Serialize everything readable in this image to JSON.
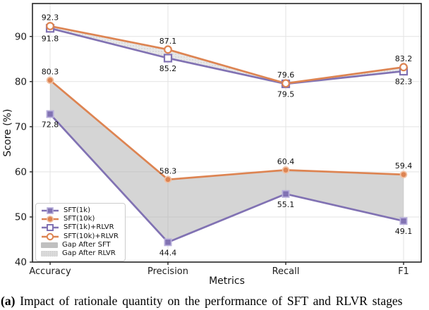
{
  "caption": {
    "marker": "(a)",
    "text": "Impact of rationale quantity on the performance of SFT and RLVR stages"
  },
  "chart_data": {
    "type": "line",
    "title": "",
    "xlabel": "Metrics",
    "ylabel": "Score (%)",
    "categories": [
      "Accuracy",
      "Precision",
      "Recall",
      "F1"
    ],
    "ylim": [
      40,
      97.3
    ],
    "yticks": [
      40,
      50,
      60,
      70,
      80,
      90
    ],
    "grid": true,
    "legend_position": "lower left",
    "series": [
      {
        "name": "SFT(1k)",
        "values": [
          72.8,
          44.4,
          55.1,
          49.1
        ],
        "color": "#8172b3",
        "edge_color": "#b7aeda",
        "marker": "square",
        "marker_fill": "solid",
        "label_side": "below"
      },
      {
        "name": "SFT(10k)",
        "values": [
          80.3,
          58.3,
          60.4,
          59.4
        ],
        "color": "#dd8452",
        "edge_color": "#f0c1a4",
        "marker": "circle",
        "marker_fill": "solid",
        "label_side": "above"
      },
      {
        "name": "SFT(1k)+RLVR",
        "values": [
          91.8,
          85.2,
          79.5,
          82.3
        ],
        "color": "#8172b3",
        "edge_color": "#8172b3",
        "marker": "square",
        "marker_fill": "open",
        "label_side": "below"
      },
      {
        "name": "SFT(10k)+RLVR",
        "values": [
          92.3,
          87.1,
          79.6,
          83.2
        ],
        "color": "#dd8452",
        "edge_color": "#dd8452",
        "marker": "circle",
        "marker_fill": "open",
        "label_side": "above"
      }
    ],
    "areas": [
      {
        "name": "Gap After SFT",
        "between": [
          0,
          1
        ],
        "fill": "#ababab",
        "opacity": 0.5,
        "dots": false
      },
      {
        "name": "Gap After RLVR",
        "between": [
          2,
          3
        ],
        "fill": "#cfcfcf",
        "opacity": 0.5,
        "dots": true
      }
    ],
    "axis_color": "#262626",
    "grid_color": "#e3e3e3",
    "tick_label_color": "#1c1c1c",
    "value_label_color": "#111111"
  }
}
